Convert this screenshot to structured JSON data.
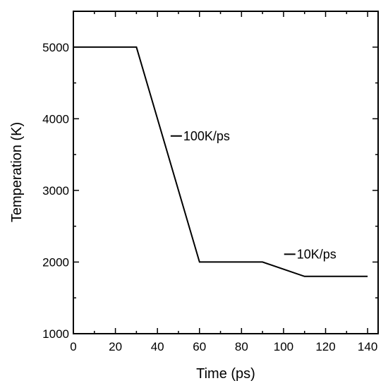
{
  "chart_data": {
    "type": "line",
    "title": "",
    "xlabel": "Time (ps)",
    "ylabel": "Temperation (K)",
    "xlim": [
      0,
      145
    ],
    "ylim": [
      1000,
      5500
    ],
    "xticks": [
      0,
      20,
      40,
      60,
      80,
      100,
      120,
      140
    ],
    "yticks": [
      1000,
      2000,
      3000,
      4000,
      5000
    ],
    "grid": false,
    "series": [
      {
        "x": [
          0,
          30,
          60,
          90,
          110,
          140
        ],
        "y": [
          5000,
          5000,
          2000,
          2000,
          1800,
          1800
        ],
        "color": "#000000"
      }
    ],
    "annotations": [
      {
        "text": "100K/ps",
        "x": 55,
        "y": 3700
      },
      {
        "text": "10K/ps",
        "x": 109,
        "y": 2050
      }
    ]
  }
}
